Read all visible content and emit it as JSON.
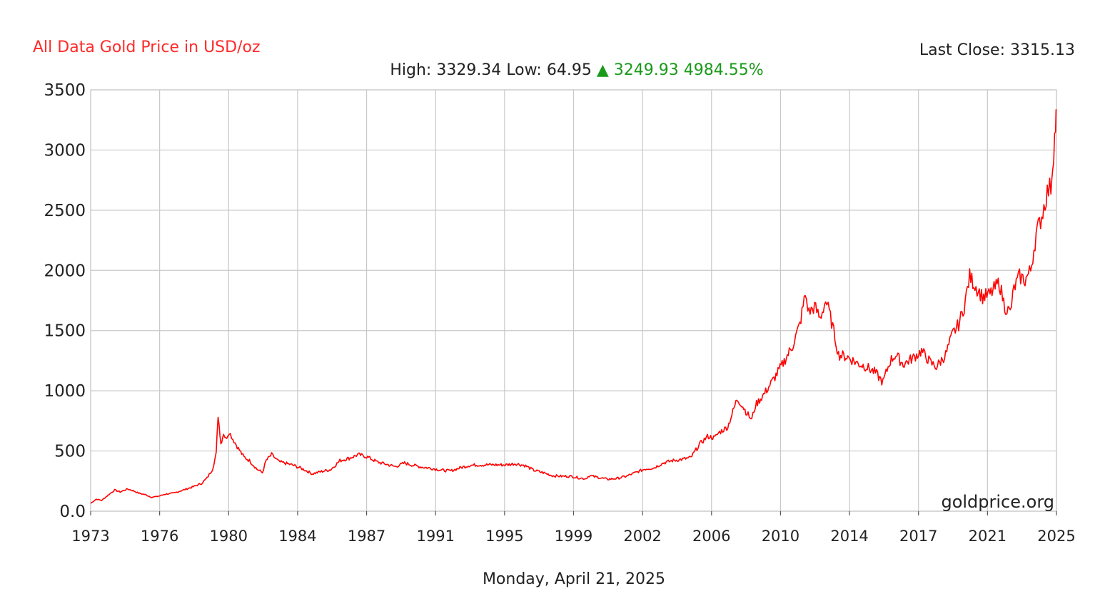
{
  "header": {
    "title": "All Data Gold Price in USD/oz",
    "last_close_label": "Last Close:",
    "last_close_value": "3315.13",
    "high_label": "High:",
    "high_value": "3329.34",
    "low_label": "Low:",
    "low_value": "64.95",
    "change_icon": "up-triangle-icon",
    "change_value": "3249.93",
    "change_percent": "4984.55%"
  },
  "colors": {
    "title": "#ff2a2a",
    "line": "#ff0000",
    "change": "#1a9a1a",
    "grid": "#c8c8c8",
    "text": "#222222"
  },
  "footer": {
    "date": "Monday, April 21, 2025",
    "watermark": "goldprice.org"
  },
  "chart_data": {
    "type": "line",
    "title": "All Data Gold Price in USD/oz",
    "xlabel": "",
    "ylabel": "",
    "grid": true,
    "xlim": [
      1973,
      2025.3
    ],
    "ylim": [
      0,
      3500
    ],
    "y_ticks": [
      "0.0",
      "500",
      "1000",
      "1500",
      "2000",
      "2500",
      "3000",
      "3500"
    ],
    "x_ticks": [
      "1973",
      "1976",
      "1980",
      "1984",
      "1987",
      "1991",
      "1995",
      "1999",
      "2002",
      "2006",
      "2010",
      "2014",
      "2017",
      "2021",
      "2025"
    ],
    "series": [
      {
        "x": [
          1973.0,
          1973.3,
          1973.6,
          1974.0,
          1974.3,
          1974.6,
          1975.0,
          1975.3,
          1975.6,
          1976.0,
          1976.3,
          1976.7,
          1977.0,
          1977.5,
          1978.0,
          1978.5,
          1979.0,
          1979.3,
          1979.6,
          1979.8,
          1979.9,
          1980.0,
          1980.05,
          1980.2,
          1980.3,
          1980.5,
          1980.7,
          1981.0,
          1981.3,
          1981.6,
          1982.0,
          1982.3,
          1982.5,
          1982.8,
          1983.0,
          1983.2,
          1983.5,
          1984.0,
          1984.5,
          1985.0,
          1985.5,
          1986.0,
          1986.5,
          1987.0,
          1987.5,
          1988.0,
          1988.5,
          1989.0,
          1989.5,
          1990.0,
          1990.5,
          1991.0,
          1991.5,
          1992.0,
          1992.5,
          1993.0,
          1993.5,
          1994.0,
          1994.5,
          1995.0,
          1995.5,
          1996.0,
          1996.5,
          1997.0,
          1997.5,
          1998.0,
          1998.5,
          1999.0,
          1999.5,
          1999.8,
          2000.0,
          2000.5,
          2001.0,
          2001.5,
          2002.0,
          2002.5,
          2003.0,
          2003.5,
          2004.0,
          2004.5,
          2005.0,
          2005.5,
          2006.0,
          2006.4,
          2006.8,
          2007.0,
          2007.5,
          2008.0,
          2008.2,
          2008.6,
          2008.8,
          2009.0,
          2009.5,
          2010.0,
          2010.5,
          2011.0,
          2011.4,
          2011.7,
          2011.9,
          2012.2,
          2012.5,
          2012.8,
          2013.0,
          2013.3,
          2013.5,
          2014.0,
          2014.5,
          2015.0,
          2015.5,
          2015.9,
          2016.3,
          2016.6,
          2017.0,
          2017.5,
          2018.0,
          2018.5,
          2018.8,
          2019.3,
          2019.7,
          2020.0,
          2020.3,
          2020.6,
          2021.0,
          2021.3,
          2021.7,
          2022.2,
          2022.5,
          2022.8,
          2023.0,
          2023.3,
          2023.6,
          2023.9,
          2024.2,
          2024.5,
          2024.8,
          2025.0,
          2025.15,
          2025.25,
          2025.3
        ],
        "y": [
          65,
          100,
          90,
          140,
          175,
          160,
          185,
          170,
          150,
          135,
          115,
          125,
          140,
          150,
          175,
          200,
          230,
          275,
          350,
          480,
          800,
          650,
          560,
          650,
          600,
          660,
          600,
          520,
          450,
          420,
          350,
          320,
          420,
          470,
          440,
          410,
          400,
          380,
          350,
          310,
          330,
          345,
          420,
          440,
          470,
          450,
          410,
          390,
          370,
          400,
          380,
          365,
          355,
          340,
          335,
          360,
          380,
          385,
          385,
          385,
          385,
          395,
          380,
          340,
          320,
          295,
          290,
          290,
          275,
          270,
          295,
          280,
          265,
          272,
          290,
          320,
          350,
          360,
          400,
          420,
          430,
          445,
          560,
          620,
          610,
          650,
          700,
          930,
          900,
          800,
          760,
          880,
          980,
          1100,
          1230,
          1370,
          1550,
          1800,
          1650,
          1700,
          1600,
          1750,
          1650,
          1450,
          1300,
          1280,
          1230,
          1200,
          1150,
          1070,
          1250,
          1300,
          1220,
          1270,
          1330,
          1230,
          1200,
          1300,
          1480,
          1550,
          1700,
          1950,
          1850,
          1780,
          1800,
          1900,
          1700,
          1650,
          1850,
          1950,
          1920,
          2000,
          2300,
          2450,
          2650,
          2700,
          3000,
          3200,
          3330
        ]
      }
    ]
  }
}
